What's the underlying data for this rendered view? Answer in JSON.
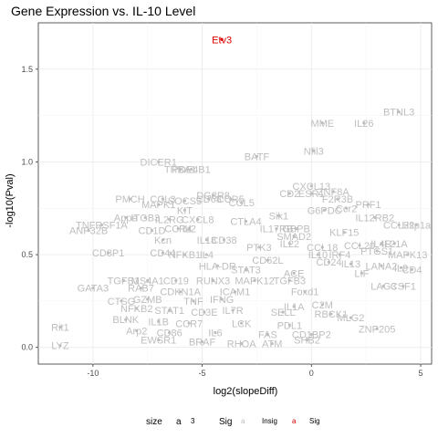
{
  "chart_data": {
    "type": "scatter",
    "title": "Gene Expression vs. IL-10 Level",
    "xlabel": "log2(slopeDiff)",
    "ylabel": "-log10(Pval)",
    "xlim": [
      -12.5,
      5.5
    ],
    "ylim": [
      -0.09,
      1.75
    ],
    "xticks": [
      -10,
      -5,
      0,
      5
    ],
    "yticks": [
      0.0,
      0.5,
      1.0,
      1.5
    ],
    "grid": true,
    "legend": {
      "position": "bottom",
      "size_title": "size",
      "size_value": "3",
      "sig_title": "Sig",
      "items": [
        {
          "label": "Insig",
          "color": "#bebebe"
        },
        {
          "label": "Sig",
          "color": "#e00000"
        }
      ]
    },
    "colors": {
      "insig": "#bebebe",
      "sig": "#e00000"
    },
    "points": [
      {
        "x": -4.1,
        "y": 1.66,
        "label": "Etv3",
        "sig": true
      },
      {
        "x": 4.0,
        "y": 1.27,
        "label": "BTNL3",
        "sig": false
      },
      {
        "x": 0.5,
        "y": 1.21,
        "label": "MME",
        "sig": false
      },
      {
        "x": 2.4,
        "y": 1.21,
        "label": "IL26",
        "sig": false
      },
      {
        "x": 0.1,
        "y": 1.06,
        "label": "Nfil3",
        "sig": false
      },
      {
        "x": -2.5,
        "y": 1.03,
        "label": "BATF",
        "sig": false
      },
      {
        "x": -7.0,
        "y": 1.0,
        "label": "DICER1",
        "sig": false
      },
      {
        "x": -6.0,
        "y": 0.96,
        "label": "TRBA1",
        "sig": false
      },
      {
        "x": -5.5,
        "y": 0.96,
        "label": "PDE4B1",
        "sig": false
      },
      {
        "x": 0.0,
        "y": 0.87,
        "label": "CXCL13",
        "sig": false
      },
      {
        "x": -1.0,
        "y": 0.83,
        "label": "CD2",
        "sig": false
      },
      {
        "x": 0.0,
        "y": 0.83,
        "label": "ESR1",
        "sig": false
      },
      {
        "x": 1.0,
        "y": 0.84,
        "label": "ZNF8A",
        "sig": false
      },
      {
        "x": 1.2,
        "y": 0.8,
        "label": "F2R3B",
        "sig": false
      },
      {
        "x": -4.5,
        "y": 0.82,
        "label": "DG8R8",
        "sig": false
      },
      {
        "x": -4.7,
        "y": 0.8,
        "label": "CD68",
        "sig": false
      },
      {
        "x": -3.7,
        "y": 0.8,
        "label": "CCR5",
        "sig": false
      },
      {
        "x": -3.2,
        "y": 0.78,
        "label": "CCL5",
        "sig": false
      },
      {
        "x": -8.3,
        "y": 0.8,
        "label": "PMCH",
        "sig": false
      },
      {
        "x": -6.8,
        "y": 0.8,
        "label": "CCL3",
        "sig": false
      },
      {
        "x": -7.0,
        "y": 0.77,
        "label": "MAPK1",
        "sig": false
      },
      {
        "x": -5.8,
        "y": 0.79,
        "label": "SOCS3",
        "sig": false
      },
      {
        "x": 2.6,
        "y": 0.77,
        "label": "PRF1",
        "sig": false
      },
      {
        "x": 0.6,
        "y": 0.74,
        "label": "G6PDC",
        "sig": false
      },
      {
        "x": 1.6,
        "y": 0.75,
        "label": "Ccr2",
        "sig": false
      },
      {
        "x": -1.5,
        "y": 0.71,
        "label": "Sik1",
        "sig": false
      },
      {
        "x": 2.9,
        "y": 0.7,
        "label": "IL12RB2",
        "sig": false
      },
      {
        "x": 4.0,
        "y": 0.66,
        "label": "CCL22",
        "sig": false
      },
      {
        "x": 4.8,
        "y": 0.66,
        "label": "Hsp1a",
        "sig": false
      },
      {
        "x": -5.8,
        "y": 0.74,
        "label": "KIT",
        "sig": false
      },
      {
        "x": -8.5,
        "y": 0.7,
        "label": "Appe",
        "sig": false
      },
      {
        "x": -7.6,
        "y": 0.7,
        "label": "ITGB3",
        "sig": false
      },
      {
        "x": -6.5,
        "y": 0.69,
        "label": "IL2RG",
        "sig": false
      },
      {
        "x": -5.2,
        "y": 0.69,
        "label": "CXCL8",
        "sig": false
      },
      {
        "x": -3.0,
        "y": 0.68,
        "label": "CTLA4",
        "sig": false
      },
      {
        "x": -9.6,
        "y": 0.66,
        "label": "TNFRSF1A",
        "sig": false
      },
      {
        "x": -7.3,
        "y": 0.63,
        "label": "CD1D",
        "sig": false
      },
      {
        "x": -6.1,
        "y": 0.64,
        "label": "CCR4",
        "sig": false
      },
      {
        "x": -5.6,
        "y": 0.64,
        "label": "IL2",
        "sig": false
      },
      {
        "x": -10.2,
        "y": 0.63,
        "label": "ANP32B",
        "sig": false
      },
      {
        "x": -1.6,
        "y": 0.64,
        "label": "IL17RB",
        "sig": false
      },
      {
        "x": -0.7,
        "y": 0.64,
        "label": "GBPB",
        "sig": false
      },
      {
        "x": -0.8,
        "y": 0.6,
        "label": "SMAD2",
        "sig": false
      },
      {
        "x": 1.5,
        "y": 0.62,
        "label": "KLF15",
        "sig": false
      },
      {
        "x": -6.8,
        "y": 0.58,
        "label": "Kcn",
        "sig": false
      },
      {
        "x": -4.8,
        "y": 0.58,
        "label": "IL18",
        "sig": false
      },
      {
        "x": -4.0,
        "y": 0.58,
        "label": "CD38",
        "sig": false
      },
      {
        "x": -1.0,
        "y": 0.56,
        "label": "IL22",
        "sig": false
      },
      {
        "x": 3.2,
        "y": 0.56,
        "label": "IL4R",
        "sig": false
      },
      {
        "x": 3.8,
        "y": 0.56,
        "label": "IL21A",
        "sig": false
      },
      {
        "x": -2.4,
        "y": 0.54,
        "label": "PTK3",
        "sig": false
      },
      {
        "x": 0.5,
        "y": 0.54,
        "label": "CCL18",
        "sig": false
      },
      {
        "x": 2.2,
        "y": 0.55,
        "label": "CCL20",
        "sig": false
      },
      {
        "x": 3.0,
        "y": 0.52,
        "label": "PTGS1",
        "sig": false
      },
      {
        "x": -9.3,
        "y": 0.51,
        "label": "CD8P1",
        "sig": false
      },
      {
        "x": -6.8,
        "y": 0.51,
        "label": "CD44",
        "sig": false
      },
      {
        "x": -5.8,
        "y": 0.5,
        "label": "NFKB1",
        "sig": false
      },
      {
        "x": -4.8,
        "y": 0.5,
        "label": "IL4",
        "sig": false
      },
      {
        "x": 0.3,
        "y": 0.5,
        "label": "IL10",
        "sig": false
      },
      {
        "x": 1.3,
        "y": 0.5,
        "label": "IRF4",
        "sig": false
      },
      {
        "x": 4.4,
        "y": 0.5,
        "label": "MAPK13",
        "sig": false
      },
      {
        "x": -2.0,
        "y": 0.47,
        "label": "CD62L",
        "sig": false
      },
      {
        "x": 0.8,
        "y": 0.46,
        "label": "CD24",
        "sig": false
      },
      {
        "x": 1.8,
        "y": 0.45,
        "label": "IL13",
        "sig": false
      },
      {
        "x": 3.2,
        "y": 0.44,
        "label": "LANA2",
        "sig": false
      },
      {
        "x": 4.1,
        "y": 0.43,
        "label": "IL9",
        "sig": false
      },
      {
        "x": 4.6,
        "y": 0.42,
        "label": "CD4",
        "sig": false
      },
      {
        "x": -4.3,
        "y": 0.44,
        "label": "HLA-DR",
        "sig": false
      },
      {
        "x": -3.0,
        "y": 0.42,
        "label": "STAT3",
        "sig": false
      },
      {
        "x": -0.8,
        "y": 0.4,
        "label": "ACE",
        "sig": false
      },
      {
        "x": 2.3,
        "y": 0.4,
        "label": "LIF",
        "sig": false
      },
      {
        "x": -8.6,
        "y": 0.36,
        "label": "TGFB1",
        "sig": false
      },
      {
        "x": -7.5,
        "y": 0.36,
        "label": "MS4A1",
        "sig": false
      },
      {
        "x": -6.2,
        "y": 0.36,
        "label": "CD19",
        "sig": false
      },
      {
        "x": -4.5,
        "y": 0.36,
        "label": "RUNX3",
        "sig": false
      },
      {
        "x": -2.6,
        "y": 0.36,
        "label": "MAPK12",
        "sig": false
      },
      {
        "x": -1.0,
        "y": 0.36,
        "label": "TGFB3",
        "sig": false
      },
      {
        "x": 3.3,
        "y": 0.33,
        "label": "LAG3",
        "sig": false
      },
      {
        "x": 4.2,
        "y": 0.33,
        "label": "CSF1",
        "sig": false
      },
      {
        "x": -10.0,
        "y": 0.32,
        "label": "GATA3",
        "sig": false
      },
      {
        "x": -7.8,
        "y": 0.32,
        "label": "RAB7",
        "sig": false
      },
      {
        "x": -6.0,
        "y": 0.3,
        "label": "CDKN1A",
        "sig": false
      },
      {
        "x": -3.5,
        "y": 0.3,
        "label": "ICAM1",
        "sig": false
      },
      {
        "x": -0.3,
        "y": 0.3,
        "label": "Foxd1",
        "sig": false
      },
      {
        "x": -8.7,
        "y": 0.25,
        "label": "CTSG",
        "sig": false
      },
      {
        "x": -7.5,
        "y": 0.26,
        "label": "GZMB",
        "sig": false
      },
      {
        "x": -5.4,
        "y": 0.25,
        "label": "TNF",
        "sig": false
      },
      {
        "x": -4.1,
        "y": 0.26,
        "label": "IFNG",
        "sig": false
      },
      {
        "x": -0.8,
        "y": 0.22,
        "label": "IL1A",
        "sig": false
      },
      {
        "x": 0.5,
        "y": 0.23,
        "label": "C2M",
        "sig": false
      },
      {
        "x": -8.0,
        "y": 0.21,
        "label": "NFKB2",
        "sig": false
      },
      {
        "x": -6.5,
        "y": 0.2,
        "label": "STAT1",
        "sig": false
      },
      {
        "x": -4.9,
        "y": 0.19,
        "label": "CD3E",
        "sig": false
      },
      {
        "x": -3.6,
        "y": 0.2,
        "label": "IL7R",
        "sig": false
      },
      {
        "x": -1.3,
        "y": 0.19,
        "label": "SELL",
        "sig": false
      },
      {
        "x": 0.9,
        "y": 0.18,
        "label": "RBCK1",
        "sig": false
      },
      {
        "x": 1.8,
        "y": 0.16,
        "label": "MLG2",
        "sig": false
      },
      {
        "x": -8.5,
        "y": 0.15,
        "label": "BLNK",
        "sig": false
      },
      {
        "x": -7.0,
        "y": 0.14,
        "label": "IL1B",
        "sig": false
      },
      {
        "x": -5.6,
        "y": 0.13,
        "label": "CCR7",
        "sig": false
      },
      {
        "x": -3.2,
        "y": 0.13,
        "label": "LCK",
        "sig": false
      },
      {
        "x": -1.0,
        "y": 0.12,
        "label": "PDL1",
        "sig": false
      },
      {
        "x": -11.5,
        "y": 0.11,
        "label": "Rit1",
        "sig": false
      },
      {
        "x": 3.0,
        "y": 0.1,
        "label": "ZNP205",
        "sig": false
      },
      {
        "x": -8.0,
        "y": 0.09,
        "label": "Arp2",
        "sig": false
      },
      {
        "x": -6.5,
        "y": 0.08,
        "label": "CD86",
        "sig": false
      },
      {
        "x": -4.4,
        "y": 0.08,
        "label": "IL6",
        "sig": false
      },
      {
        "x": -2.0,
        "y": 0.07,
        "label": "FAS",
        "sig": false
      },
      {
        "x": 0.0,
        "y": 0.07,
        "label": "CD1BP2",
        "sig": false
      },
      {
        "x": -7.0,
        "y": 0.04,
        "label": "EWSR1",
        "sig": false
      },
      {
        "x": -5.0,
        "y": 0.03,
        "label": "BRAF",
        "sig": false
      },
      {
        "x": -3.2,
        "y": 0.02,
        "label": "RHOA",
        "sig": false
      },
      {
        "x": -1.8,
        "y": 0.02,
        "label": "ATM",
        "sig": false
      },
      {
        "x": -0.2,
        "y": 0.04,
        "label": "SHB2",
        "sig": false
      },
      {
        "x": -11.5,
        "y": 0.01,
        "label": "LYZ",
        "sig": false
      }
    ]
  }
}
